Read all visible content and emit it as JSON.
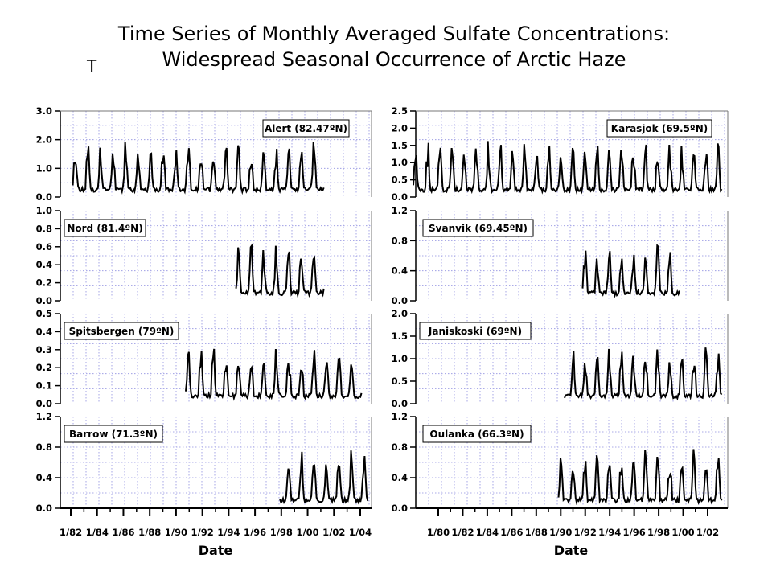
{
  "title_line1": "Time Series of Monthly Averaged Sulfate Concentrations:",
  "title_line2": "Widespread Seasonal Occurrence of Arctic Haze",
  "stray_mark": "T",
  "chart_data": {
    "type": "line",
    "grid": true,
    "xlabel_left": "Date",
    "xlabel_right": "Date",
    "left_xticks": [
      "1/82",
      "1/84",
      "1/86",
      "1/88",
      "1/90",
      "1/92",
      "1/94",
      "1/96",
      "1/98",
      "1/00",
      "1/02",
      "1/04"
    ],
    "right_xticks": [
      "1/80",
      "1/82",
      "1/84",
      "1/86",
      "1/88",
      "1/90",
      "1/92",
      "1/94",
      "1/96",
      "1/98",
      "1/00",
      "1/02"
    ],
    "panels": [
      {
        "station": "Alert (82.47ºN)",
        "column": "left",
        "ylim": [
          0,
          3.0
        ],
        "yticks": [
          "3.0",
          "2.0",
          "1.0",
          "0.0"
        ],
        "yvals": [
          3,
          2,
          1,
          0
        ],
        "data_start": 1981.0,
        "data_end": 2001.0
      },
      {
        "station": "Nord (81.4ºN)",
        "column": "left",
        "ylim": [
          0,
          1.0
        ],
        "yticks": [
          "1.0",
          "0.8",
          "0.6",
          "0.4",
          "0.2",
          "0.0"
        ],
        "yvals": [
          1,
          0.8,
          0.6,
          0.4,
          0.2,
          0
        ],
        "data_start": 1994.0,
        "data_end": 2001.0
      },
      {
        "station": "Spitsbergen (79ºN)",
        "column": "left",
        "ylim": [
          0,
          0.5
        ],
        "yticks": [
          "0.5",
          "0.4",
          "0.3",
          "0.2",
          "0.1",
          "0.0"
        ],
        "yvals": [
          0.5,
          0.4,
          0.3,
          0.2,
          0.1,
          0
        ],
        "data_start": 1990.0,
        "data_end": 2004.0
      },
      {
        "station": "Barrow (71.3ºN)",
        "column": "left",
        "ylim": [
          0,
          1.2
        ],
        "yticks": [
          "1.2",
          "0.8",
          "0.4",
          "0.0"
        ],
        "yvals": [
          1.2,
          0.8,
          0.4,
          0
        ],
        "data_start": 1997.5,
        "data_end": 2004.5
      },
      {
        "station": "Karasjok (69.5ºN)",
        "column": "right",
        "ylim": [
          0,
          2.5
        ],
        "yticks": [
          "2.5",
          "2.0",
          "1.5",
          "1.0",
          "0.5",
          "0.0"
        ],
        "yvals": [
          2.5,
          2,
          1.5,
          1,
          0.5,
          0
        ],
        "data_start": 1978.0,
        "data_end": 2003.5
      },
      {
        "station": "Svanvik (69.45ºN)",
        "column": "right",
        "ylim": [
          0,
          1.2
        ],
        "yticks": [
          "1.2",
          "0.8",
          "0.4",
          "0.0"
        ],
        "yvals": [
          1.2,
          0.8,
          0.4,
          0
        ],
        "data_start": 1992.0,
        "data_end": 2000.0
      },
      {
        "station": "Janiskoski (69ºN)",
        "column": "right",
        "ylim": [
          0,
          2.0
        ],
        "yticks": [
          "2.0",
          "1.5",
          "1.0",
          "0.5",
          "0.0"
        ],
        "yvals": [
          2,
          1.5,
          1,
          0.5,
          0
        ],
        "data_start": 1990.5,
        "data_end": 2003.5
      },
      {
        "station": "Oulanka (66.3ºN)",
        "column": "right",
        "ylim": [
          0,
          1.2
        ],
        "yticks": [
          "1.2",
          "0.8",
          "0.4",
          "0.0"
        ],
        "yvals": [
          1.2,
          0.8,
          0.4,
          0
        ],
        "data_start": 1990.0,
        "data_end": 2003.5
      }
    ]
  }
}
